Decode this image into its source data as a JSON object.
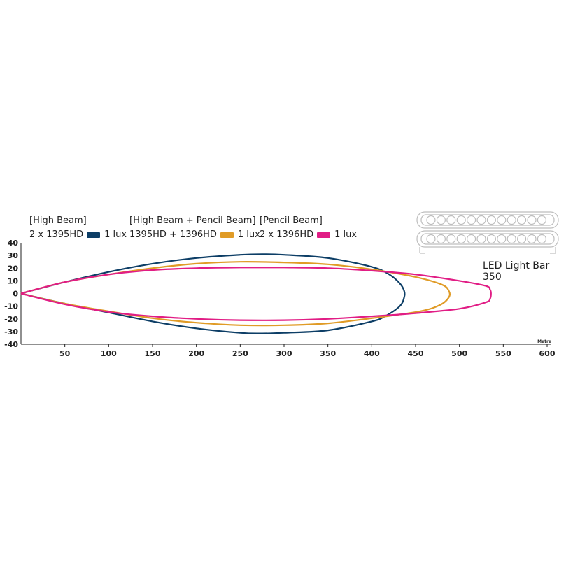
{
  "legend": [
    {
      "title": "[High Beam]",
      "model": "2 x 1395HD",
      "label": "1 lux",
      "color": "#0d3e66"
    },
    {
      "title": "[High Beam + Pencil Beam]",
      "model": "1395HD + 1396HD",
      "label": "1 lux",
      "color": "#e09b26"
    },
    {
      "title": "[Pencil Beam]",
      "model": "2 x 1396HD",
      "label": "1 lux",
      "color": "#e11d85"
    }
  ],
  "product": {
    "label": "LED Light Bar 350",
    "icon": "light-bar-icon"
  },
  "chart_data": {
    "type": "line",
    "x_unit": "Metre",
    "xlim": [
      0,
      600
    ],
    "ylim": [
      -40,
      40
    ],
    "x_ticks": [
      50,
      100,
      150,
      200,
      250,
      300,
      350,
      400,
      450,
      500,
      550,
      600
    ],
    "y_ticks": [
      40,
      30,
      20,
      10,
      0,
      -10,
      -20,
      -30,
      -40
    ],
    "grid": false,
    "legend_position": "top-left",
    "series": [
      {
        "name": "[High Beam] 2 x 1395HD 1 lux",
        "color": "#0d3e66",
        "points": [
          [
            0,
            0
          ],
          [
            50,
            9
          ],
          [
            100,
            17
          ],
          [
            150,
            23.5
          ],
          [
            200,
            28
          ],
          [
            250,
            30.5
          ],
          [
            275,
            31
          ],
          [
            300,
            30.5
          ],
          [
            350,
            28
          ],
          [
            400,
            21
          ],
          [
            420,
            15
          ],
          [
            432,
            8
          ],
          [
            437,
            2
          ],
          [
            437,
            -3
          ],
          [
            432,
            -10
          ],
          [
            415,
            -18
          ],
          [
            400,
            -22
          ],
          [
            350,
            -29
          ],
          [
            300,
            -31
          ],
          [
            275,
            -31.5
          ],
          [
            250,
            -31
          ],
          [
            200,
            -27.5
          ],
          [
            150,
            -22
          ],
          [
            100,
            -15
          ],
          [
            50,
            -8
          ],
          [
            0,
            0
          ]
        ]
      },
      {
        "name": "[High Beam + Pencil Beam] 1395HD + 1396HD 1 lux",
        "color": "#e09b26",
        "points": [
          [
            0,
            0
          ],
          [
            50,
            9
          ],
          [
            100,
            15
          ],
          [
            150,
            20
          ],
          [
            200,
            23.5
          ],
          [
            250,
            25
          ],
          [
            300,
            24.5
          ],
          [
            350,
            23
          ],
          [
            400,
            19
          ],
          [
            450,
            13
          ],
          [
            480,
            7
          ],
          [
            488,
            2
          ],
          [
            488,
            -3
          ],
          [
            478,
            -9
          ],
          [
            455,
            -14
          ],
          [
            400,
            -19.5
          ],
          [
            350,
            -23.5
          ],
          [
            300,
            -25
          ],
          [
            250,
            -25
          ],
          [
            200,
            -23
          ],
          [
            150,
            -19.5
          ],
          [
            100,
            -14
          ],
          [
            50,
            -8
          ],
          [
            0,
            0
          ]
        ]
      },
      {
        "name": "[Pencil Beam] 2 x 1396HD 1 lux",
        "color": "#e11d85",
        "points": [
          [
            0,
            0
          ],
          [
            50,
            9
          ],
          [
            100,
            15
          ],
          [
            150,
            18.5
          ],
          [
            200,
            20
          ],
          [
            250,
            20.5
          ],
          [
            300,
            20.5
          ],
          [
            350,
            20
          ],
          [
            400,
            18
          ],
          [
            450,
            15
          ],
          [
            500,
            10
          ],
          [
            530,
            6
          ],
          [
            535,
            3
          ],
          [
            536,
            0
          ],
          [
            535,
            -4
          ],
          [
            530,
            -7
          ],
          [
            500,
            -12
          ],
          [
            450,
            -15.5
          ],
          [
            400,
            -18
          ],
          [
            350,
            -20
          ],
          [
            300,
            -21
          ],
          [
            250,
            -21
          ],
          [
            200,
            -20
          ],
          [
            150,
            -18
          ],
          [
            100,
            -14.5
          ],
          [
            50,
            -8.5
          ],
          [
            0,
            0
          ]
        ]
      }
    ]
  }
}
